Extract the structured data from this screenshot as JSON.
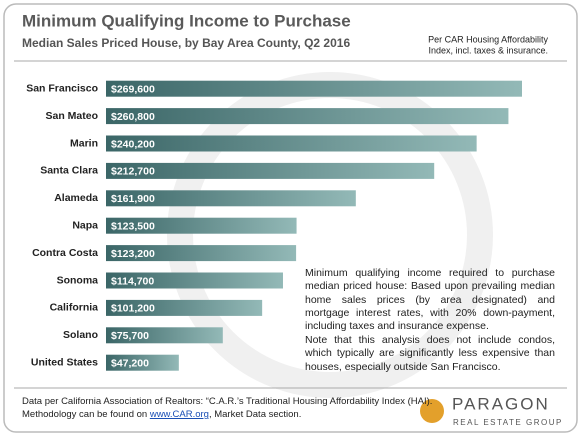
{
  "chart_data": {
    "type": "hbar",
    "title": "Minimum Qualifying Income to Purchase",
    "subtitle": "Median Sales Priced House, by Bay Area County, Q2 2016",
    "note": [
      "Per CAR Housing Affordability",
      "Index, incl. taxes & insurance."
    ],
    "categories": [
      "San Francisco",
      "San Mateo",
      "Marin",
      "Santa Clara",
      "Alameda",
      "Napa",
      "Contra Costa",
      "Sonoma",
      "California",
      "Solano",
      "United States"
    ],
    "values": [
      269600,
      260800,
      240200,
      212700,
      161900,
      123500,
      123200,
      114700,
      101200,
      75700,
      47200
    ],
    "value_labels": [
      "$269,600",
      "$260,800",
      "$240,200",
      "$212,700",
      "$161,900",
      "$123,500",
      "$123,200",
      "$114,700",
      "$101,200",
      "$75,700",
      "$47,200"
    ],
    "color": "#93b9b7",
    "annotations": [
      "Minimum qualifying income required to purchase median priced house: Based upon prevailing median home sales prices (by area designated) and mortgage interest rates, with 20% down-payment, including taxes and insurance expense.",
      "Note that this analysis does not include condos, which typically are significantly less expensive than houses, especially outside San Francisco."
    ]
  },
  "footer": {
    "line1": "Data per California Association of Realtors: “C.A.R.’s Traditional Housing Affordability Index (HAI).",
    "line2_before": "Methodology can be found on ",
    "link": "www.CAR.org",
    "line2_after": ", Market Data section."
  },
  "logo": {
    "name": "PARAGON",
    "tagline": "REAL ESTATE GROUP"
  }
}
